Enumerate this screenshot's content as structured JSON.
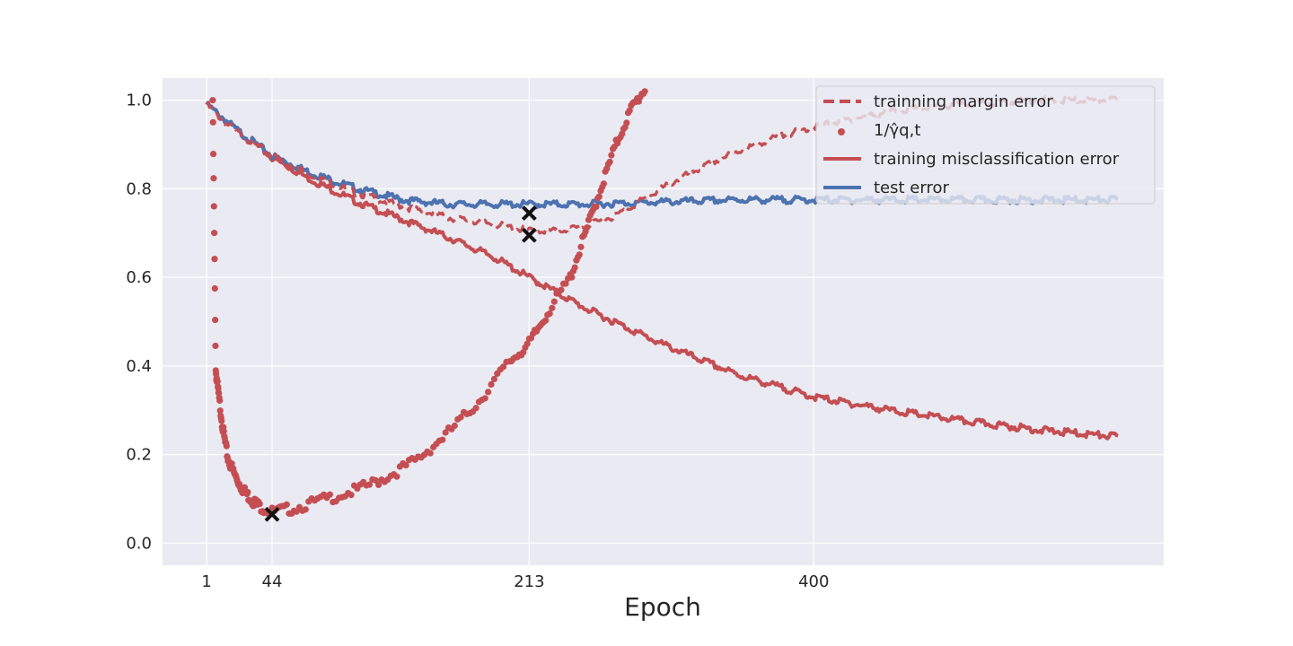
{
  "chart_data": {
    "type": "line",
    "title": "",
    "xlabel": "Epoch",
    "ylabel": "",
    "xlim": [
      -28,
      630
    ],
    "ylim": [
      -0.05,
      1.05
    ],
    "xticks": [
      1,
      44,
      213,
      400
    ],
    "yticks": [
      0.0,
      0.2,
      0.4,
      0.6,
      0.8,
      1.0
    ],
    "xtick_labels": [
      "1",
      "44",
      "213",
      "400"
    ],
    "ytick_labels": [
      "0.0",
      "0.2",
      "0.4",
      "0.6",
      "0.8",
      "1.0"
    ],
    "grid": true,
    "legend": "top-right",
    "colors": {
      "red": "#c44e52",
      "blue": "#4c72b0",
      "background": "#eaeaf2",
      "marker": "#111111"
    },
    "series": [
      {
        "name": "trainning margin error",
        "style": "dashed",
        "color": "#c44e52",
        "x": [
          1,
          10,
          20,
          44,
          70,
          100,
          130,
          160,
          190,
          213,
          230,
          250,
          270,
          290,
          310,
          340,
          370,
          400,
          450,
          500,
          550,
          600
        ],
        "y": [
          0.99,
          0.96,
          0.93,
          0.875,
          0.83,
          0.79,
          0.76,
          0.735,
          0.72,
          0.705,
          0.705,
          0.715,
          0.74,
          0.78,
          0.82,
          0.87,
          0.91,
          0.94,
          0.975,
          0.99,
          1.0,
          1.0
        ]
      },
      {
        "name": "1/γ̂q,t",
        "style": "dots",
        "color": "#c44e52",
        "x": [
          5,
          7,
          9,
          12,
          15,
          20,
          25,
          30,
          35,
          44,
          60,
          80,
          100,
          120,
          140,
          160,
          180,
          200,
          213,
          225,
          240,
          250,
          260,
          270,
          280,
          290
        ],
        "y": [
          1.0,
          0.39,
          0.33,
          0.25,
          0.19,
          0.15,
          0.12,
          0.1,
          0.085,
          0.07,
          0.08,
          0.1,
          0.12,
          0.15,
          0.19,
          0.25,
          0.32,
          0.41,
          0.45,
          0.52,
          0.6,
          0.7,
          0.8,
          0.9,
          0.98,
          1.03
        ]
      },
      {
        "name": "training misclassification error",
        "style": "solid",
        "color": "#c44e52",
        "x": [
          1,
          10,
          20,
          44,
          70,
          100,
          130,
          160,
          190,
          213,
          250,
          300,
          350,
          400,
          450,
          500,
          550,
          600
        ],
        "y": [
          0.99,
          0.965,
          0.935,
          0.87,
          0.82,
          0.77,
          0.73,
          0.69,
          0.645,
          0.6,
          0.53,
          0.45,
          0.38,
          0.33,
          0.3,
          0.275,
          0.255,
          0.24
        ]
      },
      {
        "name": "test error",
        "style": "solid",
        "color": "#4c72b0",
        "x": [
          1,
          10,
          20,
          44,
          70,
          100,
          130,
          160,
          190,
          213,
          250,
          300,
          350,
          400,
          450,
          500,
          550,
          600
        ],
        "y": [
          0.99,
          0.965,
          0.935,
          0.875,
          0.835,
          0.8,
          0.775,
          0.765,
          0.765,
          0.765,
          0.765,
          0.77,
          0.775,
          0.775,
          0.775,
          0.775,
          0.775,
          0.775
        ]
      }
    ],
    "markers": [
      {
        "x": 44,
        "y": 0.065
      },
      {
        "x": 213,
        "y": 0.745
      },
      {
        "x": 213,
        "y": 0.695
      }
    ]
  }
}
